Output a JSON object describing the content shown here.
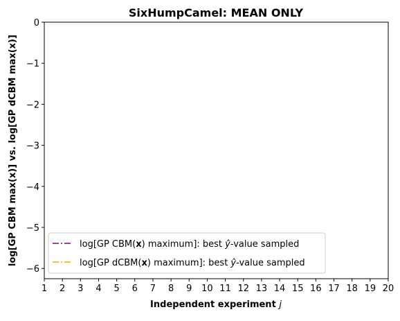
{
  "chart_data": {
    "type": "line",
    "title": "SixHumpCamel: MEAN ONLY",
    "xlabel_main": "Independent experiment ",
    "xlabel_var": "j",
    "ylabel": "log[GP CBM max(x)] vs. log[GP dCBM max(x)]",
    "xlim": [
      1,
      20
    ],
    "ylim": [
      -6.25,
      0
    ],
    "x_ticks": [
      "1",
      "2",
      "3",
      "4",
      "5",
      "6",
      "7",
      "8",
      "9",
      "10",
      "11",
      "12",
      "13",
      "14",
      "15",
      "16",
      "17",
      "18",
      "19",
      "20"
    ],
    "y_ticks": [
      "0",
      "−1",
      "−2",
      "−3",
      "−4",
      "−5",
      "−6"
    ],
    "y_tick_values": [
      0,
      -1,
      -2,
      -3,
      -4,
      -5,
      -6
    ],
    "grid": false,
    "legend_placement": "lower-left",
    "series": [
      {
        "label_pre": "log[GP CBM(",
        "label_bold": "x",
        "label_mid": ") maximum]: best ",
        "label_math": "ŷ",
        "label_post": "-value sampled",
        "color": "#800080",
        "linestyle": "dashdot",
        "values": []
      },
      {
        "label_pre": "log[GP dCBM(",
        "label_bold": "x",
        "label_mid": ") maximum]: best ",
        "label_math": "ŷ",
        "label_post": "-value sampled",
        "color": "#FFA500",
        "linestyle": "dashdot",
        "values": []
      }
    ]
  }
}
